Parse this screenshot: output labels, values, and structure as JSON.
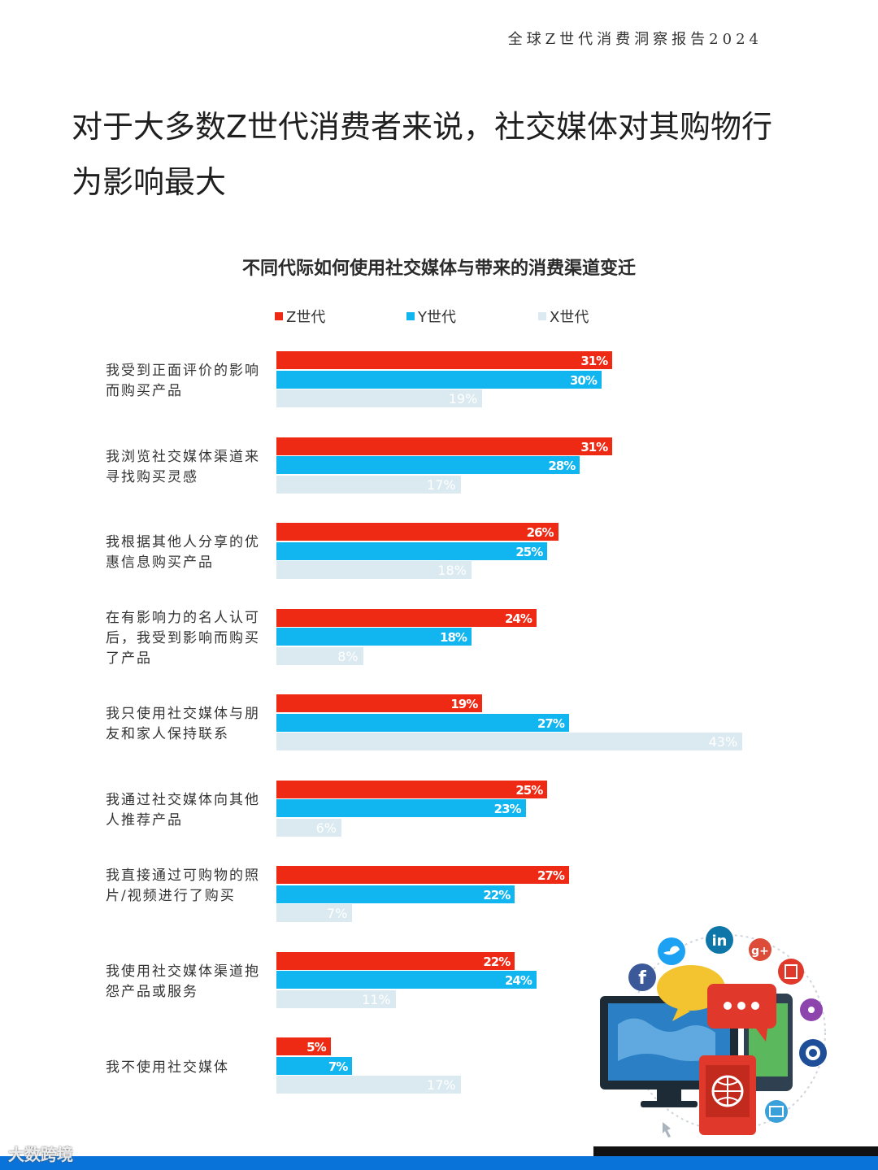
{
  "header": {
    "report_title": "全球Z世代消费洞察报告2024"
  },
  "headline": "对于大多数Z世代消费者来说，社交媒体对其购物行为影响最大",
  "chart_data": {
    "type": "bar",
    "orientation": "horizontal",
    "title": "不同代际如何使用社交媒体与带来的消费渠道变迁",
    "legend_position": "top",
    "categories": [
      "我受到正面评价的影响而购买产品",
      "我浏览社交媒体渠道来寻找购买灵感",
      "我根据其他人分享的优惠信息购买产品",
      "在有影响力的名人认可后，我受到影响而购买了产品",
      "我只使用社交媒体与朋友和家人保持联系",
      "我通过社交媒体向其他人推荐产品",
      "我直接通过可购物的照片/视频进行了购买",
      "我使用社交媒体渠道抱怨产品或服务",
      "我不使用社交媒体"
    ],
    "series": [
      {
        "name": "Z世代",
        "color": "#ee2a14",
        "values": [
          31,
          31,
          26,
          24,
          19,
          25,
          27,
          22,
          5
        ]
      },
      {
        "name": "Y世代",
        "color": "#11b5f0",
        "values": [
          30,
          28,
          25,
          18,
          27,
          23,
          22,
          24,
          7
        ]
      },
      {
        "name": "X世代",
        "color": "#dbeaf1",
        "values": [
          19,
          17,
          18,
          8,
          43,
          6,
          7,
          11,
          17
        ]
      }
    ],
    "value_suffix": "%",
    "grid": false
  },
  "watermark": "大数跨境"
}
